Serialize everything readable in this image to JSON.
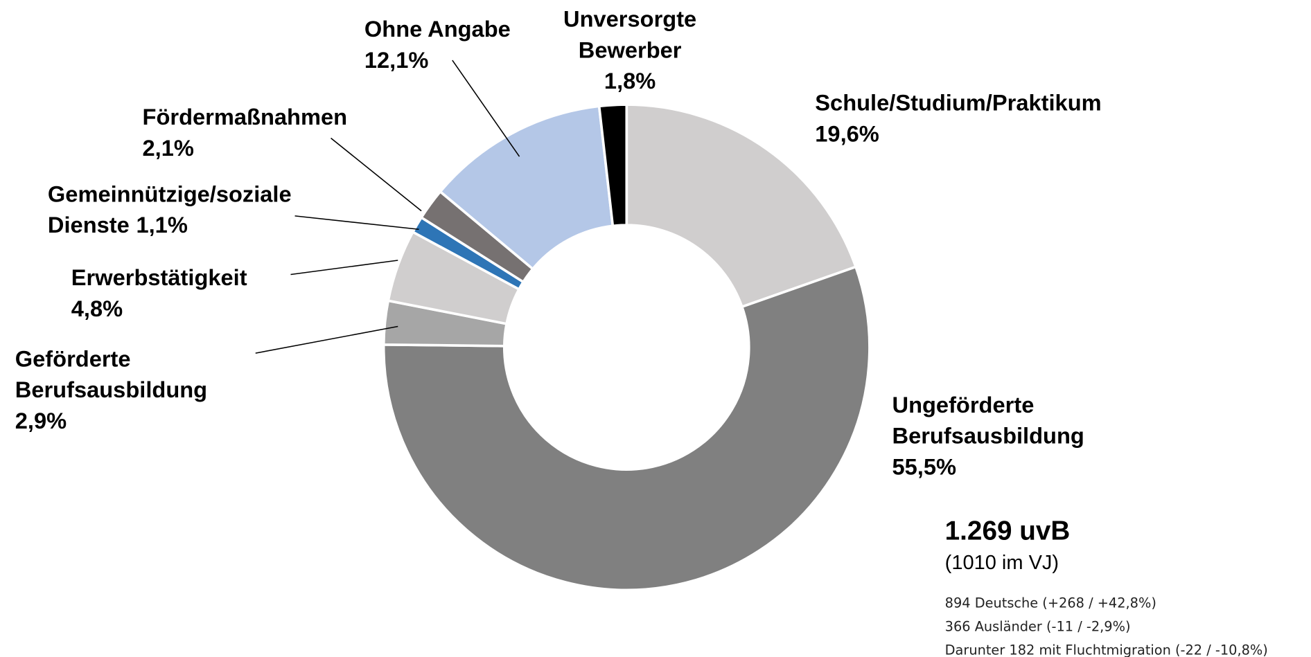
{
  "chart_data": {
    "type": "donut",
    "categories": [
      "Schule/Studium/Praktikum",
      "Ungeförderte Berufsausbildung",
      "Geförderte Berufsausbildung",
      "Erwerbstätigkeit",
      "Gemeinnützige/soziale Dienste",
      "Fördermaßnahmen",
      "Ohne Angabe",
      "Unversorgte Bewerber"
    ],
    "values": [
      19.6,
      55.5,
      2.9,
      4.8,
      1.1,
      2.1,
      12.1,
      1.8
    ],
    "value_labels": [
      "19,6%",
      "55,5%",
      "2,9%",
      "4,8%",
      "1,1%",
      "2,1%",
      "12,1%",
      "1,8%"
    ],
    "colors": [
      "#d0cece",
      "#808080",
      "#a6a6a6",
      "#d0cece",
      "#2e75b6",
      "#767171",
      "#b4c7e7",
      "#000000"
    ],
    "annotations": {
      "total": "1.269 uvB",
      "previous_year": "(1010 im VJ)",
      "notes": [
        "894 Deutsche (+268 / +42,8%)",
        "366 Ausländer (-11 / -2,9%)",
        "Darunter 182 mit Fluchtmigration (-22 / -10,8%)"
      ]
    }
  }
}
